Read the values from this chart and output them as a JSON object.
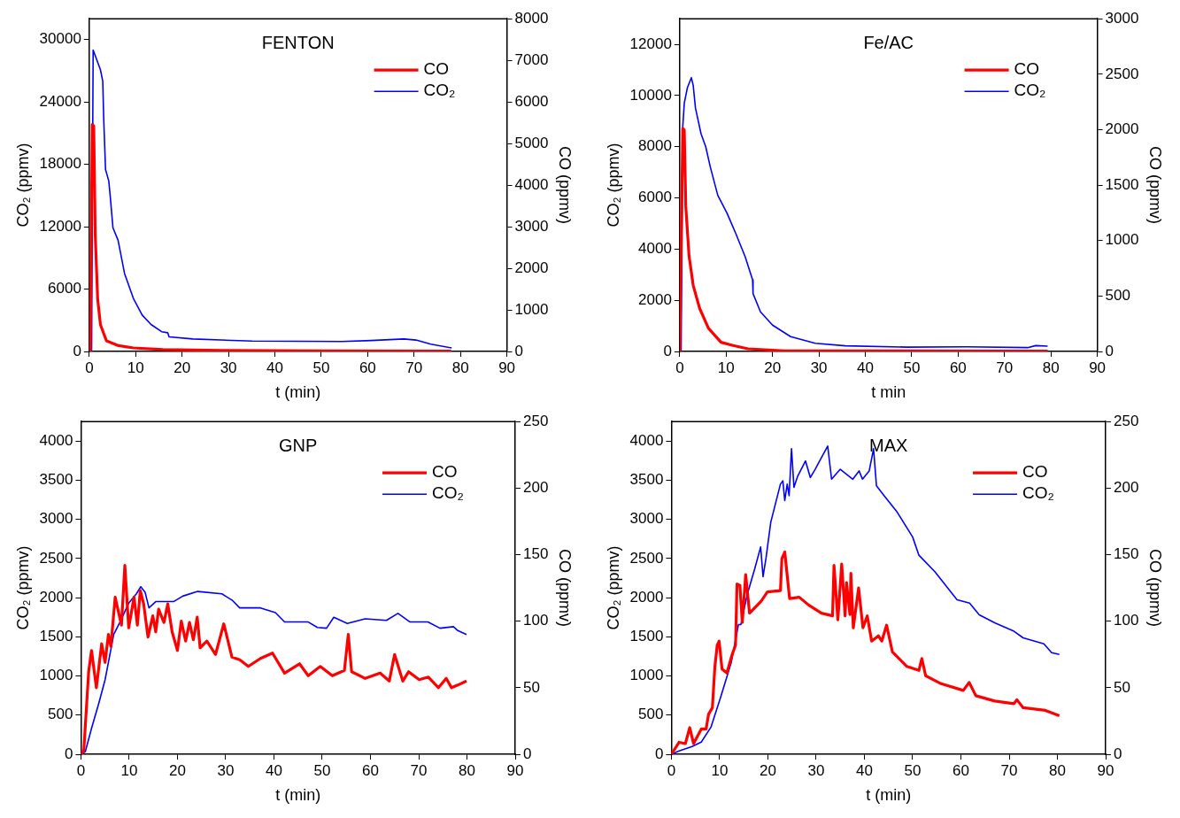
{
  "chart_data": [
    {
      "type": "line",
      "title": "FENTON",
      "xlabel": "t (min)",
      "ylabel": "CO₂ (ppmv)",
      "y2label": "CO (ppmv)",
      "xlim": [
        0,
        90
      ],
      "xticks": [
        0,
        10,
        20,
        30,
        40,
        50,
        60,
        70,
        80,
        90
      ],
      "ylim": [
        0,
        32000
      ],
      "yticks": [
        0,
        6000,
        12000,
        18000,
        24000,
        30000
      ],
      "y2lim": [
        0,
        8000
      ],
      "y2ticks": [
        0,
        1000,
        2000,
        3000,
        4000,
        5000,
        6000,
        7000,
        8000
      ],
      "legend": "top right",
      "series": [
        {
          "name": "CO",
          "color": "#ff0000",
          "axis": "y2",
          "x": [
            0,
            0.2,
            0.64,
            0.96,
            1.28,
            1.8,
            2.4,
            3.7,
            6.3,
            9.5,
            15.9,
            28.7,
            50,
            78
          ],
          "values": [
            0,
            0,
            5460,
            5420,
            2820,
            1265,
            645,
            256,
            140,
            85,
            47,
            23,
            15,
            8
          ]
        },
        {
          "name": "CO₂",
          "color": "#0000ff",
          "axis": "y",
          "x": [
            0.5,
            0.83,
            2.4,
            2.9,
            3.1,
            3.5,
            4.2,
            4.5,
            5.1,
            6.2,
            7.6,
            9.5,
            11.4,
            13.3,
            15.6,
            16.9,
            17.2,
            22.3,
            35.1,
            54.4,
            60.8,
            67.8,
            70.4,
            73.6,
            78.1
          ],
          "values": [
            0,
            29000,
            27100,
            26000,
            22500,
            17500,
            16400,
            15000,
            11900,
            10700,
            7500,
            5100,
            3500,
            2600,
            1900,
            1800,
            1400,
            1200,
            1000,
            960,
            1050,
            1200,
            1100,
            700,
            340
          ]
        }
      ]
    },
    {
      "type": "line",
      "title": "Fe/AC",
      "xlabel": "t min",
      "ylabel": "CO₂ (ppmv)",
      "y2label": "CO (ppmv)",
      "xlim": [
        0,
        90
      ],
      "xticks": [
        0,
        10,
        20,
        30,
        40,
        50,
        60,
        70,
        80,
        90
      ],
      "ylim": [
        0,
        13000
      ],
      "yticks": [
        0,
        2000,
        4000,
        6000,
        8000,
        10000,
        12000
      ],
      "y2lim": [
        0,
        3000
      ],
      "y2ticks": [
        0,
        500,
        1000,
        1500,
        2000,
        2500,
        3000
      ],
      "legend": "top right",
      "series": [
        {
          "name": "CO",
          "color": "#ff0000",
          "axis": "y2",
          "x": [
            0,
            0.33,
            0.66,
            0.98,
            1.3,
            2.0,
            2.9,
            4.3,
            6.2,
            8.9,
            11.5,
            14.7,
            22.6,
            79.3
          ],
          "values": [
            0,
            1013,
            2010,
            1996,
            1310,
            864,
            596,
            387,
            209,
            83,
            54,
            24,
            6,
            3
          ]
        },
        {
          "name": "CO₂",
          "color": "#0000ff",
          "axis": "y",
          "x": [
            0,
            0.3,
            0.66,
            0.98,
            1.64,
            2.5,
            2.9,
            3.4,
            4.6,
            5.6,
            6.6,
            8.2,
            10.2,
            12.1,
            14.1,
            15.7,
            15.8,
            17.4,
            20.0,
            23.9,
            29.2,
            35.7,
            48.8,
            61.9,
            75.0,
            76.7,
            79.3
          ],
          "values": [
            0,
            60,
            8800,
            9700,
            10300,
            10700,
            10400,
            9500,
            8500,
            8000,
            7200,
            6100,
            5400,
            4600,
            3700,
            2800,
            2260,
            1550,
            1030,
            580,
            320,
            220,
            170,
            180,
            150,
            230,
            210
          ]
        }
      ]
    },
    {
      "type": "line",
      "title": "GNP",
      "xlabel": "t (min)",
      "ylabel": "CO₂ (ppmv)",
      "y2label": "CO (ppmv)",
      "xlim": [
        0,
        90
      ],
      "xticks": [
        0,
        10,
        20,
        30,
        40,
        50,
        60,
        70,
        80,
        90
      ],
      "ylim": [
        0,
        4250
      ],
      "yticks": [
        0,
        500,
        1000,
        1500,
        2000,
        2500,
        3000,
        3500,
        4000
      ],
      "y2lim": [
        0,
        250
      ],
      "y2ticks": [
        0,
        50,
        100,
        150,
        200,
        250
      ],
      "legend": "top right",
      "series": [
        {
          "name": "CO",
          "color": "#ff0000",
          "axis": "y2",
          "x": [
            0,
            0.6,
            1.6,
            2.2,
            3.2,
            4.3,
            5.0,
            5.7,
            6.2,
            7.1,
            8.4,
            9.1,
            9.9,
            11.0,
            11.7,
            12.3,
            13.0,
            13.9,
            14.9,
            15.5,
            16.1,
            17.2,
            18.0,
            18.9,
            20.0,
            20.8,
            21.7,
            22.5,
            23.3,
            24.1,
            24.7,
            26.1,
            27.9,
            29.6,
            31.3,
            32.9,
            34.7,
            37.2,
            39.7,
            42.2,
            45.3,
            47.1,
            49.6,
            52.1,
            54.6,
            55.4,
            56.1,
            58.9,
            62.0,
            63.9,
            65.0,
            66.7,
            67.9,
            70.1,
            72.0,
            74.1,
            75.7,
            76.8,
            78.1,
            79.9
          ],
          "values": [
            0,
            3,
            62,
            78,
            50,
            83,
            69,
            90,
            81,
            118,
            97,
            142,
            95,
            118,
            97,
            123,
            113,
            88,
            104,
            92,
            109,
            99,
            113,
            92,
            78,
            100,
            85,
            99,
            86,
            103,
            80,
            85,
            75,
            98,
            73,
            71,
            66,
            72,
            76,
            61,
            68,
            59,
            66,
            59,
            63,
            90,
            62,
            57,
            61,
            55,
            75,
            55,
            62,
            56,
            58,
            50,
            57,
            50,
            52,
            55
          ]
        },
        {
          "name": "CO₂",
          "color": "#0000ff",
          "axis": "y",
          "x": [
            0,
            0.9,
            2.2,
            3.7,
            5.0,
            6.8,
            8.1,
            9.9,
            11.5,
            12.4,
            13.3,
            14.1,
            15.5,
            19.2,
            21.1,
            24.2,
            29.2,
            31.3,
            32.9,
            37.2,
            40.3,
            42.2,
            47.1,
            49.0,
            50.9,
            52.4,
            55.2,
            58.9,
            63.3,
            65.7,
            68.2,
            71.9,
            74.4,
            77.2,
            78.1,
            79.9
          ],
          "values": [
            0,
            32,
            330,
            650,
            950,
            1530,
            1690,
            1930,
            2050,
            2140,
            2070,
            1870,
            1950,
            1950,
            2020,
            2080,
            2050,
            1970,
            1870,
            1870,
            1810,
            1690,
            1690,
            1620,
            1610,
            1750,
            1670,
            1730,
            1710,
            1800,
            1690,
            1690,
            1610,
            1630,
            1580,
            1530
          ]
        }
      ]
    },
    {
      "type": "line",
      "title": "MAX",
      "xlabel": "t (min)",
      "ylabel": "CO₂ (ppmv)",
      "y2label": "CO (ppmv)",
      "xlim": [
        0,
        90
      ],
      "xticks": [
        0,
        10,
        20,
        30,
        40,
        50,
        60,
        70,
        80,
        90
      ],
      "ylim": [
        0,
        4250
      ],
      "yticks": [
        0,
        500,
        1000,
        1500,
        2000,
        2500,
        3000,
        3500,
        4000
      ],
      "y2lim": [
        0,
        250
      ],
      "y2ticks": [
        0,
        50,
        100,
        150,
        200,
        250
      ],
      "legend": "top right",
      "series": [
        {
          "name": "CO",
          "color": "#ff0000",
          "axis": "y2",
          "x": [
            0,
            1.6,
            2.9,
            3.8,
            4.6,
            6.2,
            7.2,
            7.7,
            8.5,
            9.0,
            9.5,
            9.9,
            10.5,
            11.5,
            12.6,
            13.3,
            13.6,
            14.2,
            14.7,
            15.4,
            16.2,
            18.6,
            19.9,
            22.6,
            22.9,
            23.5,
            24.5,
            26.5,
            28.5,
            31.1,
            33.4,
            33.7,
            34.5,
            35.3,
            36.0,
            36.3,
            37.0,
            37.2,
            37.7,
            38.8,
            39.7,
            40.6,
            41.5,
            42.9,
            43.6,
            44.6,
            45.8,
            48.8,
            51.3,
            51.9,
            52.7,
            55.9,
            60.5,
            61.7,
            63.1,
            67.0,
            71.0,
            71.6,
            72.9,
            77.5,
            80.4
          ],
          "values": [
            0,
            9,
            8,
            20,
            8,
            19,
            19,
            30,
            35,
            65,
            82,
            85,
            64,
            61,
            75,
            82,
            128,
            127,
            99,
            135,
            106,
            115,
            122,
            123,
            147,
            152,
            117,
            118,
            112,
            106,
            104,
            142,
            101,
            143,
            104,
            129,
            105,
            136,
            95,
            125,
            95,
            104,
            85,
            89,
            85,
            97,
            77,
            66,
            63,
            72,
            59,
            53,
            48,
            54,
            44,
            40,
            38,
            41,
            35,
            33,
            29
          ]
        },
        {
          "name": "CO₂",
          "color": "#0000ff",
          "axis": "y",
          "x": [
            0,
            1.6,
            4.3,
            6.2,
            8.2,
            10.2,
            12.4,
            13.9,
            14.4,
            15.7,
            17.3,
            18.5,
            19.0,
            19.6,
            20.6,
            22.6,
            23.1,
            23.5,
            24.0,
            24.4,
            24.9,
            25.4,
            26.2,
            27.8,
            28.8,
            29.8,
            31.1,
            32.4,
            33.2,
            35.0,
            37.6,
            38.9,
            39.6,
            41.0,
            41.9,
            42.5,
            44.1,
            46.8,
            50.0,
            51.3,
            54.6,
            59.2,
            61.8,
            63.8,
            67.1,
            71.0,
            72.9,
            77.2,
            78.8,
            80.4
          ],
          "values": [
            0,
            42,
            100,
            156,
            346,
            727,
            1170,
            1656,
            1656,
            2036,
            2374,
            2648,
            2268,
            2500,
            2965,
            3451,
            3493,
            3240,
            3451,
            3303,
            3903,
            3409,
            3556,
            3747,
            3535,
            3641,
            3789,
            3937,
            3514,
            3641,
            3514,
            3620,
            3514,
            3620,
            3903,
            3430,
            3303,
            3092,
            2775,
            2543,
            2332,
            1973,
            1930,
            1782,
            1677,
            1571,
            1487,
            1411,
            1297,
            1276
          ]
        }
      ]
    }
  ]
}
